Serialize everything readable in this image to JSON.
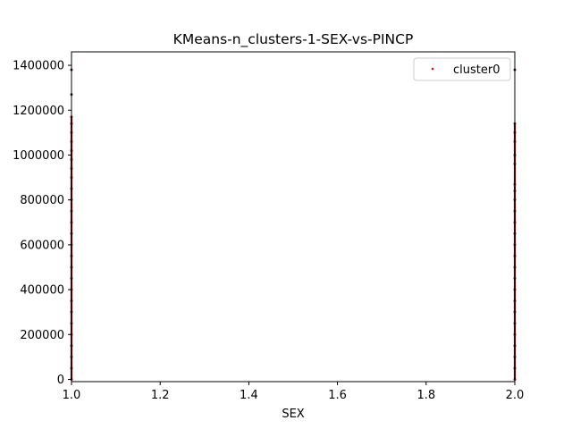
{
  "chart_data": {
    "type": "scatter",
    "title": "KMeans-n_clusters-1-SEX-vs-PINCP",
    "xlabel": "SEX",
    "ylabel": "PINCP",
    "xlim": [
      1.0,
      2.0
    ],
    "ylim": [
      -10000,
      1460000
    ],
    "xticks": [
      1.0,
      1.2,
      1.4,
      1.6,
      1.8,
      2.0
    ],
    "xtick_labels": [
      "1.0",
      "1.2",
      "1.4",
      "1.6",
      "1.8",
      "2.0"
    ],
    "yticks": [
      0,
      200000,
      400000,
      600000,
      800000,
      1000000,
      1200000,
      1400000
    ],
    "ytick_labels": [
      "0",
      "200000",
      "400000",
      "600000",
      "800000",
      "1000000",
      "1200000",
      "1400000"
    ],
    "grid": false,
    "legend_position": "top-right",
    "series": [
      {
        "name": "cluster0",
        "color": "#ff0000",
        "points": [
          {
            "x": 1,
            "y": 0
          },
          {
            "x": 1,
            "y": 50000
          },
          {
            "x": 1,
            "y": 100000
          },
          {
            "x": 1,
            "y": 150000
          },
          {
            "x": 1,
            "y": 200000
          },
          {
            "x": 1,
            "y": 250000
          },
          {
            "x": 1,
            "y": 300000
          },
          {
            "x": 1,
            "y": 350000
          },
          {
            "x": 1,
            "y": 400000
          },
          {
            "x": 1,
            "y": 450000
          },
          {
            "x": 1,
            "y": 500000
          },
          {
            "x": 1,
            "y": 550000
          },
          {
            "x": 1,
            "y": 600000
          },
          {
            "x": 1,
            "y": 650000
          },
          {
            "x": 1,
            "y": 700000
          },
          {
            "x": 1,
            "y": 750000
          },
          {
            "x": 1,
            "y": 800000
          },
          {
            "x": 1,
            "y": 850000
          },
          {
            "x": 1,
            "y": 900000
          },
          {
            "x": 1,
            "y": 940000
          },
          {
            "x": 1,
            "y": 980000
          },
          {
            "x": 1,
            "y": 1020000
          },
          {
            "x": 1,
            "y": 1060000
          },
          {
            "x": 1,
            "y": 1100000
          },
          {
            "x": 1,
            "y": 1140000
          },
          {
            "x": 1,
            "y": 1170000
          },
          {
            "x": 1,
            "y": 1270000
          },
          {
            "x": 1,
            "y": 1380000
          },
          {
            "x": 2,
            "y": 0
          },
          {
            "x": 2,
            "y": 50000
          },
          {
            "x": 2,
            "y": 100000
          },
          {
            "x": 2,
            "y": 150000
          },
          {
            "x": 2,
            "y": 200000
          },
          {
            "x": 2,
            "y": 250000
          },
          {
            "x": 2,
            "y": 300000
          },
          {
            "x": 2,
            "y": 350000
          },
          {
            "x": 2,
            "y": 400000
          },
          {
            "x": 2,
            "y": 450000
          },
          {
            "x": 2,
            "y": 500000
          },
          {
            "x": 2,
            "y": 550000
          },
          {
            "x": 2,
            "y": 600000
          },
          {
            "x": 2,
            "y": 650000
          },
          {
            "x": 2,
            "y": 700000
          },
          {
            "x": 2,
            "y": 750000
          },
          {
            "x": 2,
            "y": 800000
          },
          {
            "x": 2,
            "y": 840000
          },
          {
            "x": 2,
            "y": 870000
          },
          {
            "x": 2,
            "y": 960000
          },
          {
            "x": 2,
            "y": 1000000
          },
          {
            "x": 2,
            "y": 1060000
          },
          {
            "x": 2,
            "y": 1100000
          },
          {
            "x": 2,
            "y": 1140000
          },
          {
            "x": 2,
            "y": 1380000
          }
        ]
      }
    ]
  }
}
